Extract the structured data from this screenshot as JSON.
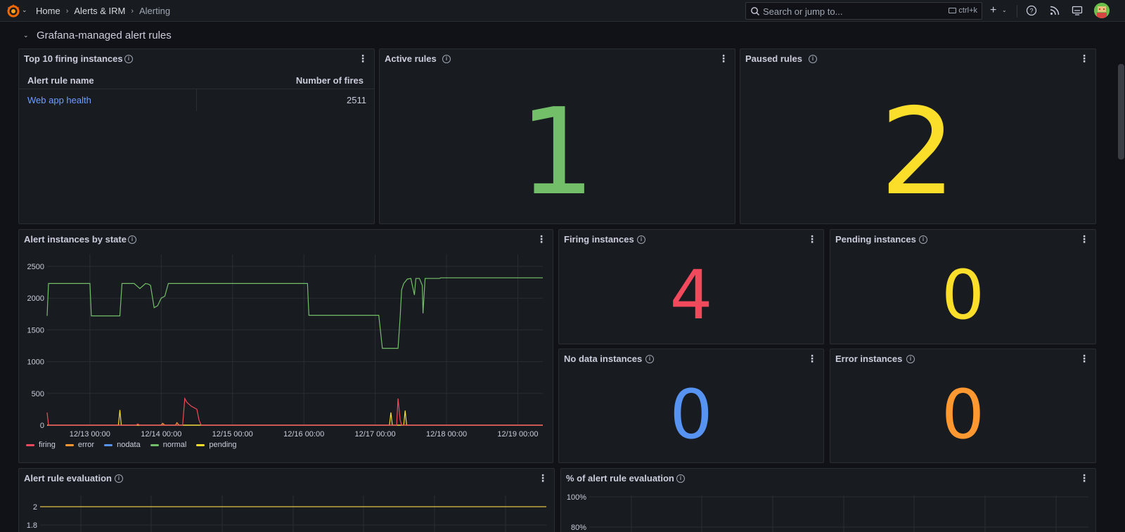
{
  "topbar": {
    "breadcrumbs": [
      "Home",
      "Alerts & IRM",
      "Alerting"
    ],
    "search_placeholder": "Search or jump to...",
    "search_shortcut": "ctrl+k",
    "new_label": "+"
  },
  "row": {
    "title": "Grafana-managed alert rules"
  },
  "panels": {
    "top_firing": {
      "title": "Top 10 firing instances",
      "columns": [
        "Alert rule name",
        "Number of fires"
      ],
      "rows": [
        {
          "name": "Web app health",
          "fires": "2511"
        }
      ]
    },
    "active_rules": {
      "title": "Active rules",
      "value": "1",
      "color": "#73bf69"
    },
    "paused_rules": {
      "title": "Paused rules",
      "value": "2",
      "color": "#fade2a"
    },
    "firing_instances": {
      "title": "Firing instances",
      "value": "4",
      "color": "#f2495c"
    },
    "pending_instances": {
      "title": "Pending instances",
      "value": "0",
      "color": "#fade2a"
    },
    "nodata_instances": {
      "title": "No data instances",
      "value": "0",
      "color": "#5794f2"
    },
    "error_instances": {
      "title": "Error instances",
      "value": "0",
      "color": "#ff9830"
    },
    "instances_by_state": {
      "title": "Alert instances by state"
    },
    "rule_evaluation": {
      "title": "Alert rule evaluation"
    },
    "pct_rule_evaluation": {
      "title": "% of alert rule evaluation"
    }
  },
  "chart_data": [
    {
      "type": "line",
      "title": "Alert instances by state",
      "x_ticks": [
        "12/13 00:00",
        "12/14 00:00",
        "12/15 00:00",
        "12/16 00:00",
        "12/17 00:00",
        "12/18 00:00",
        "12/19 00:00"
      ],
      "y_ticks": [
        0,
        500,
        1000,
        1500,
        2000,
        2500
      ],
      "ylim": [
        0,
        2500
      ],
      "xlim": [
        -0.6,
        6.35
      ],
      "legend_position": "bottom-left",
      "grid": true,
      "series": [
        {
          "name": "firing",
          "color": "#f2495c",
          "points": [
            [
              -0.6,
              200
            ],
            [
              -0.58,
              0
            ],
            [
              0.65,
              0
            ],
            [
              0.67,
              20
            ],
            [
              0.7,
              0
            ],
            [
              1.3,
              0
            ],
            [
              1.33,
              420
            ],
            [
              1.36,
              360
            ],
            [
              1.42,
              300
            ],
            [
              1.5,
              250
            ],
            [
              1.53,
              80
            ],
            [
              1.56,
              0
            ],
            [
              4.3,
              0
            ],
            [
              4.32,
              420
            ],
            [
              4.35,
              80
            ],
            [
              4.37,
              0
            ],
            [
              6.35,
              0
            ]
          ]
        },
        {
          "name": "error",
          "color": "#ff9830",
          "points": [
            [
              -0.6,
              0
            ],
            [
              1.0,
              0
            ],
            [
              1.02,
              30
            ],
            [
              1.05,
              0
            ],
            [
              1.2,
              0
            ],
            [
              1.22,
              40
            ],
            [
              1.25,
              0
            ],
            [
              6.35,
              0
            ]
          ]
        },
        {
          "name": "nodata",
          "color": "#5794f2",
          "points": [
            [
              -0.6,
              0
            ],
            [
              6.35,
              0
            ]
          ]
        },
        {
          "name": "normal",
          "color": "#73bf69",
          "points": [
            [
              -0.6,
              1720
            ],
            [
              -0.58,
              2230
            ],
            [
              0.0,
              2230
            ],
            [
              0.02,
              1720
            ],
            [
              0.42,
              1720
            ],
            [
              0.45,
              2230
            ],
            [
              0.62,
              2230
            ],
            [
              0.65,
              2200
            ],
            [
              0.7,
              2150
            ],
            [
              0.78,
              2230
            ],
            [
              0.82,
              2220
            ],
            [
              0.85,
              2200
            ],
            [
              0.9,
              1850
            ],
            [
              0.95,
              1880
            ],
            [
              1.0,
              2000
            ],
            [
              1.05,
              2030
            ],
            [
              1.1,
              2230
            ],
            [
              3.05,
              2230
            ],
            [
              3.07,
              1730
            ],
            [
              4.05,
              1730
            ],
            [
              4.1,
              1210
            ],
            [
              4.32,
              1210
            ],
            [
              4.35,
              1700
            ],
            [
              4.37,
              2130
            ],
            [
              4.4,
              2230
            ],
            [
              4.45,
              2300
            ],
            [
              4.5,
              2310
            ],
            [
              4.55,
              2050
            ],
            [
              4.57,
              2310
            ],
            [
              4.62,
              2310
            ],
            [
              4.66,
              2200
            ],
            [
              4.67,
              1760
            ],
            [
              4.7,
              2310
            ],
            [
              4.9,
              2310
            ],
            [
              4.92,
              2320
            ],
            [
              6.35,
              2320
            ]
          ]
        },
        {
          "name": "pending",
          "color": "#fade2a",
          "points": [
            [
              -0.6,
              0
            ],
            [
              0.4,
              0
            ],
            [
              0.42,
              240
            ],
            [
              0.44,
              0
            ],
            [
              4.2,
              0
            ],
            [
              4.22,
              200
            ],
            [
              4.24,
              0
            ],
            [
              4.4,
              0
            ],
            [
              4.42,
              230
            ],
            [
              4.44,
              0
            ],
            [
              6.35,
              0
            ]
          ]
        }
      ]
    },
    {
      "type": "line",
      "title": "Alert rule evaluation",
      "y_ticks": [
        1.8,
        2
      ],
      "series": [
        {
          "color": "#e5c449",
          "values": [
            2,
            2
          ]
        }
      ]
    },
    {
      "type": "line",
      "title": "% of alert rule evaluation",
      "y_ticks": [
        "80%",
        "100%"
      ],
      "series": []
    }
  ]
}
